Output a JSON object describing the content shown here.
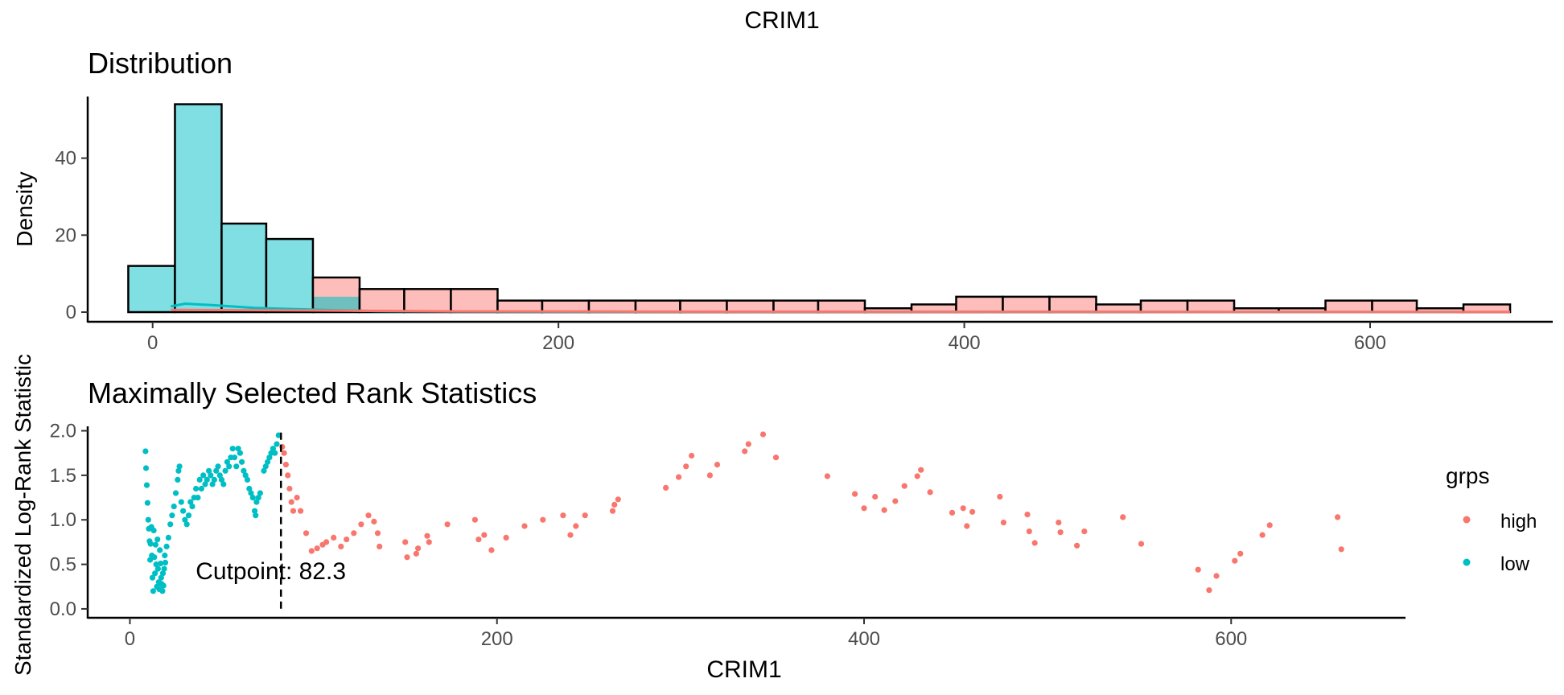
{
  "page_title": "CRIM1",
  "colors": {
    "high": "#F8766D",
    "low": "#00BFC4",
    "high_fill": "#FDBDBA",
    "low_fill": "#80DFE2",
    "overlap_fill": "#6FBFBF"
  },
  "chart_data": [
    {
      "type": "bar",
      "title": "Distribution",
      "xlabel": "",
      "ylabel": "Density",
      "xlim": [
        -32,
        690
      ],
      "ylim": [
        -2.5,
        56
      ],
      "x_ticks": [
        0,
        200,
        400,
        600
      ],
      "y_ticks": [
        0,
        20,
        40
      ],
      "bin_edges": [
        -12,
        11,
        34,
        56,
        79,
        102,
        124,
        147,
        170,
        192,
        215,
        238,
        260,
        283,
        306,
        328,
        351,
        374,
        396,
        419,
        442,
        465,
        487,
        510,
        533,
        555,
        578,
        601,
        623,
        646,
        669
      ],
      "series": [
        {
          "name": "low",
          "values": [
            12,
            54,
            23,
            19,
            4,
            0,
            0,
            0,
            0,
            0,
            0,
            0,
            0,
            0,
            0,
            0,
            0,
            0,
            0,
            0,
            0,
            0,
            0,
            0,
            0,
            0,
            0,
            0,
            0,
            0
          ]
        },
        {
          "name": "high",
          "values": [
            0,
            0,
            0,
            0,
            9,
            6,
            6,
            6,
            3,
            3,
            3,
            3,
            3,
            3,
            3,
            3,
            1,
            2,
            4,
            4,
            4,
            2,
            3,
            3,
            1,
            1,
            3,
            3,
            1,
            2
          ]
        }
      ],
      "density_curves": [
        {
          "name": "low",
          "points": [
            [
              9,
              1.5
            ],
            [
              16,
              2.2
            ],
            [
              30,
              1.8
            ],
            [
              50,
              1.1
            ],
            [
              70,
              0.8
            ],
            [
              90,
              0.5
            ],
            [
              110,
              0.25
            ],
            [
              150,
              0.15
            ],
            [
              300,
              0.1
            ],
            [
              500,
              0.05
            ],
            [
              643,
              0.03
            ]
          ]
        },
        {
          "name": "high",
          "points": [
            [
              9,
              0.6
            ],
            [
              50,
              0.5
            ],
            [
              90,
              0.4
            ],
            [
              150,
              0.2
            ],
            [
              300,
              0.12
            ],
            [
              500,
              0.08
            ],
            [
              669,
              0.06
            ]
          ]
        }
      ]
    },
    {
      "type": "scatter",
      "title": "Maximally Selected Rank Statistics",
      "xlabel": "CRIM1",
      "ylabel": "Standardized Log-Rank Statistic",
      "xlim": [
        -23,
        695
      ],
      "ylim": [
        -0.1,
        2.05
      ],
      "x_ticks": [
        0,
        200,
        400,
        600
      ],
      "y_ticks": [
        "0.0",
        "0.5",
        "1.0",
        "1.5",
        "2.0"
      ],
      "cutpoint": 82.3,
      "cutpoint_label": "Cutpoint: 82.3",
      "legend": {
        "title": "grps",
        "placement": "right",
        "entries": [
          "high",
          "low"
        ]
      },
      "series": [
        {
          "name": "low",
          "points": [
            [
              8.5,
              1.77
            ],
            [
              8.8,
              1.58
            ],
            [
              9.2,
              1.39
            ],
            [
              9.6,
              1.19
            ],
            [
              10,
              1.0
            ],
            [
              10.3,
              0.9
            ],
            [
              10.7,
              0.76
            ],
            [
              11,
              0.55
            ],
            [
              11.3,
              0.73
            ],
            [
              11.7,
              0.92
            ],
            [
              12,
              0.6
            ],
            [
              12.3,
              0.35
            ],
            [
              12.7,
              0.2
            ],
            [
              13,
              0.88
            ],
            [
              13.3,
              0.58
            ],
            [
              13.7,
              0.4
            ],
            [
              14,
              0.72
            ],
            [
              14.3,
              0.5
            ],
            [
              14.7,
              0.25
            ],
            [
              15,
              0.78
            ],
            [
              15.3,
              0.45
            ],
            [
              15.7,
              0.3
            ],
            [
              16,
              0.22
            ],
            [
              16.3,
              0.66
            ],
            [
              16.7,
              0.51
            ],
            [
              17,
              0.35
            ],
            [
              17.3,
              0.28
            ],
            [
              17.7,
              0.2
            ],
            [
              18,
              0.4
            ],
            [
              18.3,
              0.26
            ],
            [
              18.7,
              0.45
            ],
            [
              19,
              0.6
            ],
            [
              19.3,
              0.52
            ],
            [
              20,
              0.7
            ],
            [
              21,
              0.8
            ],
            [
              22,
              0.95
            ],
            [
              23,
              1.05
            ],
            [
              24,
              1.15
            ],
            [
              25,
              1.3
            ],
            [
              26,
              1.45
            ],
            [
              26.5,
              1.55
            ],
            [
              27,
              1.6
            ],
            [
              28,
              1.2
            ],
            [
              29,
              1.1
            ],
            [
              30,
              1.0
            ],
            [
              31,
              0.95
            ],
            [
              32,
              1.05
            ],
            [
              33,
              1.2
            ],
            [
              34,
              1.15
            ],
            [
              35,
              1.25
            ],
            [
              36,
              1.35
            ],
            [
              37,
              1.25
            ],
            [
              38,
              1.45
            ],
            [
              39,
              1.35
            ],
            [
              40,
              1.5
            ],
            [
              41,
              1.4
            ],
            [
              42,
              1.45
            ],
            [
              43,
              1.55
            ],
            [
              44,
              1.5
            ],
            [
              45,
              1.4
            ],
            [
              46,
              1.45
            ],
            [
              47,
              1.55
            ],
            [
              48,
              1.6
            ],
            [
              49,
              1.5
            ],
            [
              50,
              1.45
            ],
            [
              51,
              1.4
            ],
            [
              52,
              1.55
            ],
            [
              53,
              1.65
            ],
            [
              54,
              1.6
            ],
            [
              55,
              1.7
            ],
            [
              56,
              1.8
            ],
            [
              57,
              1.7
            ],
            [
              58,
              1.6
            ],
            [
              59,
              1.8
            ],
            [
              60,
              1.75
            ],
            [
              61,
              1.65
            ],
            [
              62,
              1.55
            ],
            [
              63,
              1.5
            ],
            [
              64,
              1.45
            ],
            [
              65,
              1.35
            ],
            [
              66,
              1.3
            ],
            [
              67,
              1.25
            ],
            [
              68,
              1.1
            ],
            [
              68.5,
              1.05
            ],
            [
              69,
              1.2
            ],
            [
              70,
              1.25
            ],
            [
              71,
              1.3
            ],
            [
              73,
              1.55
            ],
            [
              74,
              1.6
            ],
            [
              75,
              1.65
            ],
            [
              76,
              1.7
            ],
            [
              77,
              1.75
            ],
            [
              78,
              1.8
            ],
            [
              79,
              1.75
            ],
            [
              80,
              1.85
            ],
            [
              81,
              1.95
            ]
          ]
        },
        {
          "name": "high",
          "points": [
            [
              83,
              1.82
            ],
            [
              84,
              1.75
            ],
            [
              85,
              1.62
            ],
            [
              86,
              1.5
            ],
            [
              87,
              1.35
            ],
            [
              88,
              1.2
            ],
            [
              89,
              1.1
            ],
            [
              91,
              1.25
            ],
            [
              93,
              1.1
            ],
            [
              96,
              0.85
            ],
            [
              99,
              0.65
            ],
            [
              102,
              0.68
            ],
            [
              105,
              0.72
            ],
            [
              107,
              0.75
            ],
            [
              111,
              0.8
            ],
            [
              115,
              0.7
            ],
            [
              118,
              0.78
            ],
            [
              122,
              0.85
            ],
            [
              126,
              0.95
            ],
            [
              130,
              1.05
            ],
            [
              133,
              0.98
            ],
            [
              135,
              0.85
            ],
            [
              136,
              0.7
            ],
            [
              150,
              0.75
            ],
            [
              151,
              0.58
            ],
            [
              156,
              0.62
            ],
            [
              157,
              0.68
            ],
            [
              162,
              0.82
            ],
            [
              163,
              0.75
            ],
            [
              173,
              0.95
            ],
            [
              188,
              1.0
            ],
            [
              190,
              0.78
            ],
            [
              193,
              0.83
            ],
            [
              197,
              0.66
            ],
            [
              205,
              0.8
            ],
            [
              215,
              0.93
            ],
            [
              225,
              1.0
            ],
            [
              236,
              1.05
            ],
            [
              240,
              0.83
            ],
            [
              243,
              0.93
            ],
            [
              248,
              1.05
            ],
            [
              263,
              1.1
            ],
            [
              264,
              1.17
            ],
            [
              266,
              1.23
            ],
            [
              292,
              1.36
            ],
            [
              299,
              1.48
            ],
            [
              303,
              1.6
            ],
            [
              306,
              1.72
            ],
            [
              316,
              1.5
            ],
            [
              320,
              1.62
            ],
            [
              335,
              1.77
            ],
            [
              337,
              1.85
            ],
            [
              345,
              1.96
            ],
            [
              352,
              1.7
            ],
            [
              380,
              1.49
            ],
            [
              395,
              1.29
            ],
            [
              400,
              1.13
            ],
            [
              406,
              1.26
            ],
            [
              411,
              1.11
            ],
            [
              417,
              1.21
            ],
            [
              422,
              1.38
            ],
            [
              429,
              1.49
            ],
            [
              431,
              1.56
            ],
            [
              436,
              1.31
            ],
            [
              448,
              1.08
            ],
            [
              454,
              1.13
            ],
            [
              456,
              0.93
            ],
            [
              459,
              1.09
            ],
            [
              474,
              1.26
            ],
            [
              476,
              0.97
            ],
            [
              489,
              1.06
            ],
            [
              490,
              0.87
            ],
            [
              493,
              0.74
            ],
            [
              506,
              0.97
            ],
            [
              507,
              0.86
            ],
            [
              516,
              0.71
            ],
            [
              520,
              0.87
            ],
            [
              541,
              1.03
            ],
            [
              551,
              0.73
            ],
            [
              582,
              0.44
            ],
            [
              588,
              0.21
            ],
            [
              592,
              0.37
            ],
            [
              602,
              0.54
            ],
            [
              605,
              0.62
            ],
            [
              617,
              0.83
            ],
            [
              621,
              0.94
            ],
            [
              658,
              1.03
            ],
            [
              660,
              0.67
            ]
          ]
        }
      ]
    }
  ]
}
